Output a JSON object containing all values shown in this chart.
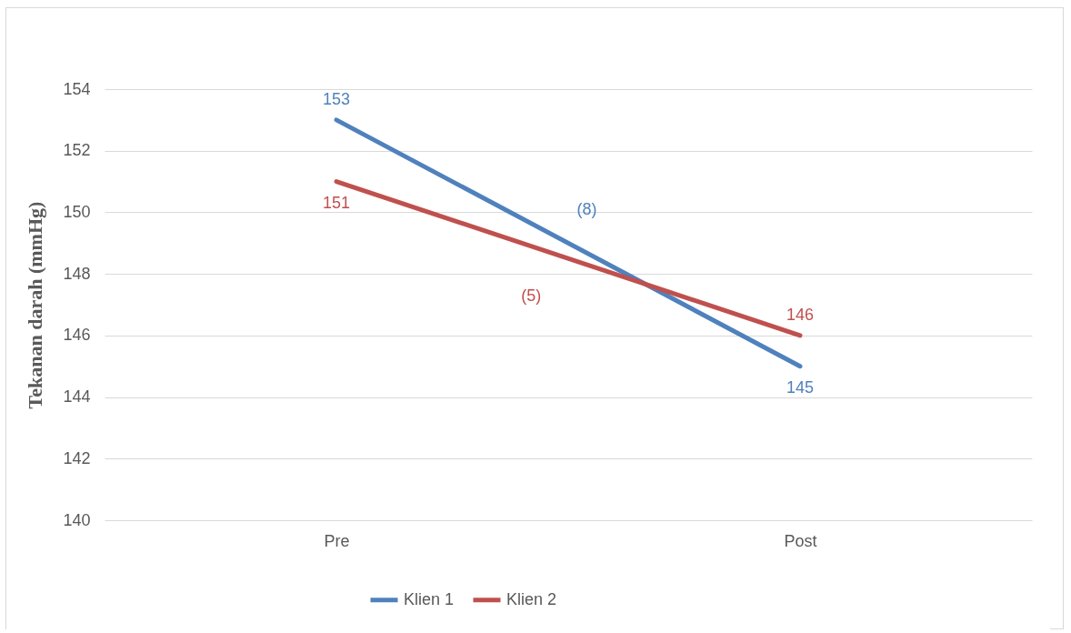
{
  "chart_data": {
    "type": "line",
    "ylabel": "Tekanan darah (mmHg)",
    "categories": [
      "Pre",
      "Post"
    ],
    "series": [
      {
        "name": "Klien 1",
        "color": "#4f81bd",
        "values": [
          153,
          145
        ]
      },
      {
        "name": "Klien 2",
        "color": "#c0504d",
        "values": [
          151,
          146
        ]
      }
    ],
    "ylim": [
      140,
      154
    ],
    "yticks": [
      140,
      142,
      144,
      146,
      148,
      150,
      152,
      154
    ],
    "grid": "y",
    "legend": "bottom",
    "data_labels": true,
    "marker": "none",
    "line_style": "solid",
    "annotations": [
      "(8)",
      "(5)"
    ]
  }
}
